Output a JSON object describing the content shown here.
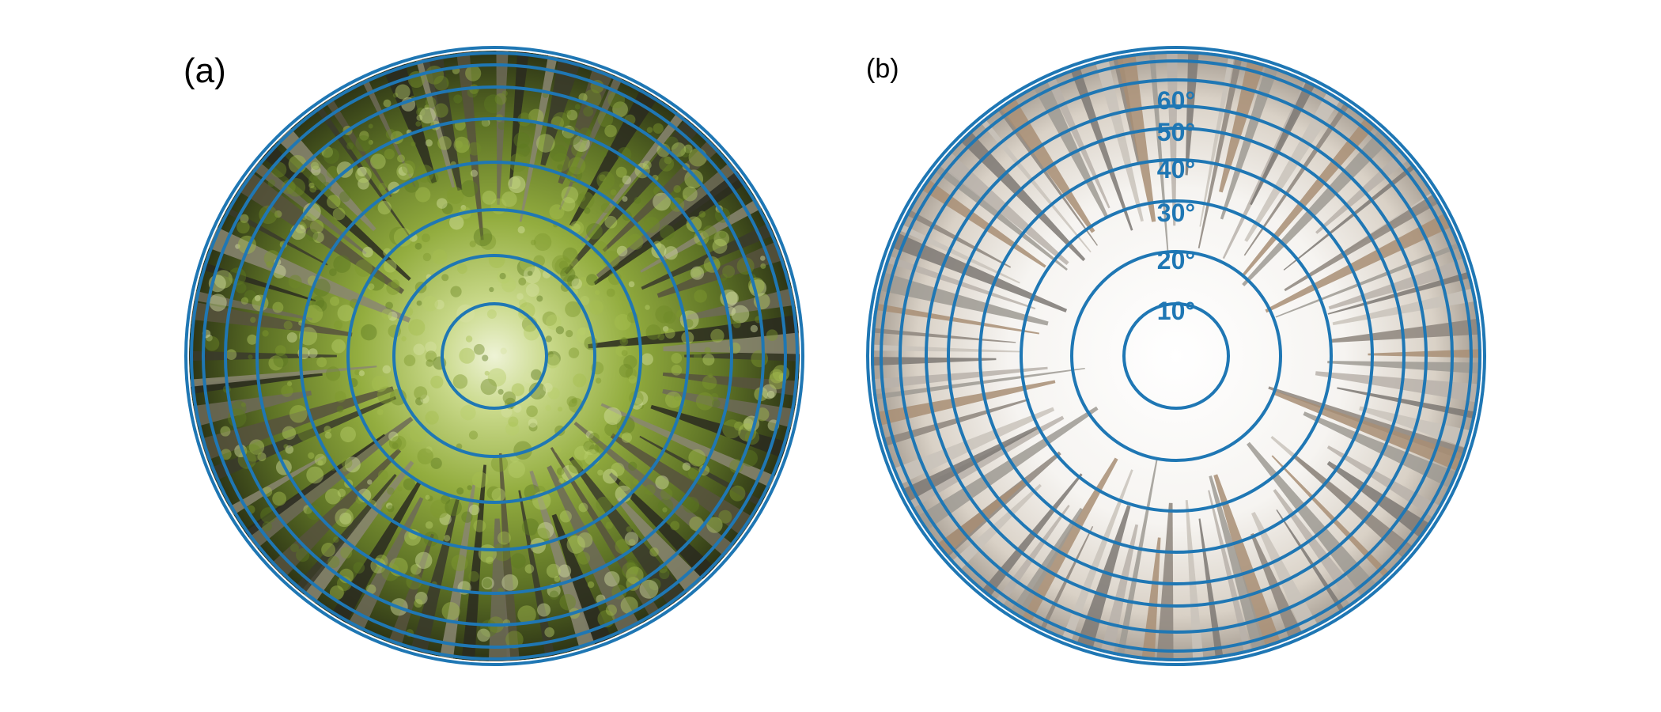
{
  "panels": [
    {
      "label": "(a)",
      "scene": "summer-canopy",
      "ring_color": "#1f77b4",
      "ring_labels": []
    },
    {
      "label": "(b)",
      "scene": "winter-canopy",
      "ring_color": "#1f77b4",
      "ring_labels": [
        "10°",
        "20°",
        "30°",
        "40°",
        "50°",
        "60°"
      ]
    }
  ]
}
